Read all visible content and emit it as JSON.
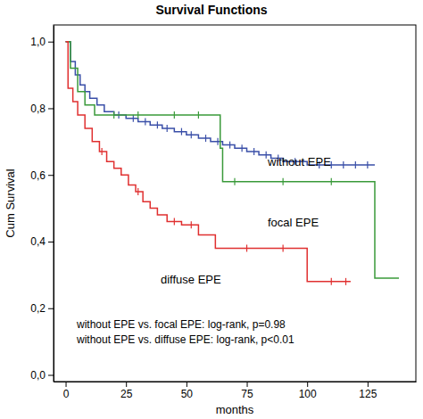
{
  "chart_data": {
    "type": "step",
    "title": "Survival Functions",
    "x_label": "months",
    "y_label": "Cum Survival",
    "xlim": [
      -5,
      145
    ],
    "xticks": [
      0,
      25,
      50,
      75,
      100,
      125
    ],
    "ylim": [
      -0.02,
      1.05
    ],
    "yticks": [
      {
        "value": 0,
        "label": "0,0"
      },
      {
        "value": 0.2,
        "label": "0,2"
      },
      {
        "value": 0.4,
        "label": "0,4"
      },
      {
        "value": 0.6,
        "label": "0,6"
      },
      {
        "value": 0.8,
        "label": "0,8"
      },
      {
        "value": 1.0,
        "label": "1,0"
      }
    ],
    "grid": false,
    "annotations": [
      "without EPE vs. focal EPE: log-rank, p=0.98",
      "without EPE vs. diffuse EPE: log-rank, p<0.01"
    ],
    "series": [
      {
        "name": "without EPE",
        "color": "#3a4fa8",
        "x": [
          0,
          2,
          4,
          6,
          8,
          10,
          13,
          16,
          20,
          25,
          30,
          35,
          40,
          45,
          50,
          55,
          60,
          65,
          70,
          75,
          80,
          85,
          90,
          100,
          128
        ],
        "values": [
          1.0,
          0.94,
          0.9,
          0.87,
          0.85,
          0.83,
          0.81,
          0.79,
          0.78,
          0.77,
          0.76,
          0.75,
          0.74,
          0.73,
          0.72,
          0.71,
          0.7,
          0.69,
          0.68,
          0.67,
          0.66,
          0.65,
          0.64,
          0.63,
          0.63
        ],
        "censored_x": [
          22,
          28,
          33,
          38,
          42,
          48,
          52,
          58,
          63,
          68,
          73,
          78,
          83,
          88,
          95,
          105,
          110,
          115,
          120,
          125
        ],
        "censored_y": [
          0.78,
          0.77,
          0.76,
          0.75,
          0.74,
          0.73,
          0.72,
          0.71,
          0.7,
          0.69,
          0.68,
          0.67,
          0.66,
          0.65,
          0.64,
          0.63,
          0.63,
          0.63,
          0.63,
          0.63
        ]
      },
      {
        "name": "focal EPE",
        "color": "#3a9a3a",
        "x": [
          0,
          2,
          5,
          8,
          12,
          64,
          65,
          128,
          138
        ],
        "values": [
          1.0,
          0.92,
          0.85,
          0.81,
          0.78,
          0.68,
          0.58,
          0.29,
          0.29
        ],
        "censored_x": [
          20,
          30,
          45,
          55,
          70,
          90,
          110
        ],
        "censored_y": [
          0.78,
          0.78,
          0.78,
          0.78,
          0.58,
          0.58,
          0.58
        ]
      },
      {
        "name": "diffuse EPE",
        "color": "#e03030",
        "x": [
          0,
          1,
          3,
          5,
          8,
          11,
          14,
          17,
          20,
          23,
          26,
          29,
          32,
          35,
          38,
          42,
          48,
          55,
          62,
          100,
          118
        ],
        "values": [
          1.0,
          0.86,
          0.82,
          0.78,
          0.74,
          0.7,
          0.67,
          0.64,
          0.62,
          0.6,
          0.57,
          0.55,
          0.52,
          0.5,
          0.48,
          0.46,
          0.45,
          0.42,
          0.38,
          0.28,
          0.28
        ],
        "censored_x": [
          15,
          30,
          45,
          52,
          75,
          90,
          110,
          116
        ],
        "censored_y": [
          0.67,
          0.55,
          0.46,
          0.45,
          0.38,
          0.38,
          0.28,
          0.28
        ]
      }
    ]
  }
}
